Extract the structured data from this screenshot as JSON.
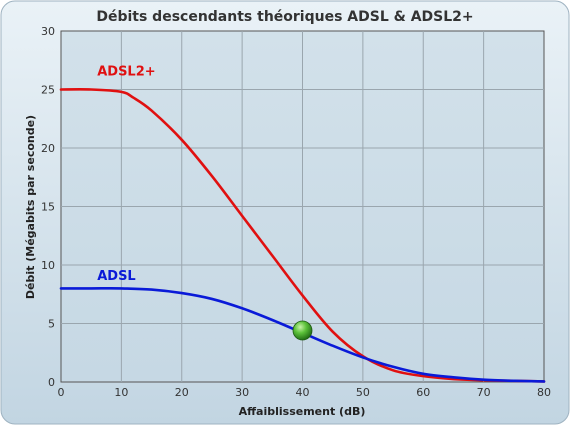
{
  "chart_data": {
    "type": "line",
    "title": "Débits descendants théoriques ADSL & ADSL2+",
    "xlabel": "Affaiblissement (dB)",
    "ylabel": "Débit (Mégabits par seconde)",
    "xlim": [
      0,
      80
    ],
    "ylim": [
      0,
      30
    ],
    "x_ticks": [
      0,
      10,
      20,
      30,
      40,
      50,
      60,
      70,
      80
    ],
    "y_ticks": [
      0,
      5,
      10,
      15,
      20,
      25,
      30
    ],
    "grid": true,
    "legend": "inline labels",
    "series": [
      {
        "name": "ADSL2+",
        "color": "#e01010",
        "x": [
          0,
          5,
          10,
          12,
          15,
          20,
          25,
          30,
          35,
          40,
          45,
          50,
          55,
          60,
          65,
          70,
          75,
          80
        ],
        "y": [
          25.0,
          25.0,
          24.8,
          24.3,
          23.2,
          20.7,
          17.6,
          14.2,
          10.8,
          7.4,
          4.3,
          2.2,
          1.0,
          0.5,
          0.25,
          0.15,
          0.1,
          0.05
        ]
      },
      {
        "name": "ADSL",
        "color": "#0a1ad8",
        "x": [
          0,
          5,
          10,
          15,
          20,
          25,
          30,
          35,
          40,
          45,
          50,
          55,
          60,
          65,
          70,
          75,
          80
        ],
        "y": [
          8.0,
          8.0,
          8.0,
          7.9,
          7.6,
          7.1,
          6.3,
          5.3,
          4.2,
          3.1,
          2.1,
          1.3,
          0.7,
          0.4,
          0.2,
          0.1,
          0.05
        ]
      }
    ],
    "marker": {
      "x": 40,
      "y": 4.4,
      "color": "#3a9a22"
    }
  }
}
